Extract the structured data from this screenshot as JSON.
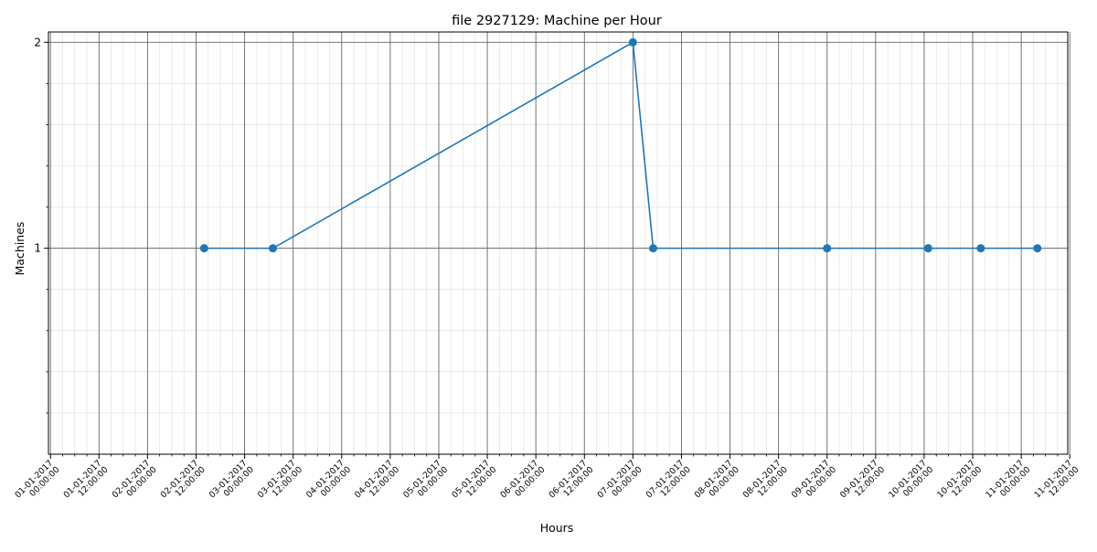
{
  "chart_data": {
    "type": "line",
    "title": "file 2927129: Machine per Hour",
    "xlabel": "Hours",
    "ylabel": "Machines",
    "x_range_hours": [
      -0.5,
      251.5
    ],
    "ylim": [
      0,
      2.05
    ],
    "y_ticks": [
      1,
      2
    ],
    "x_tick_labels": [
      "01-01-2017 00:00:00",
      "01-01-2017 12:00:00",
      "02-01-2017 00:00:00",
      "02-01-2017 12:00:00",
      "03-01-2017 00:00:00",
      "03-01-2017 12:00:00",
      "04-01-2017 00:00:00",
      "04-01-2017 12:00:00",
      "05-01-2017 00:00:00",
      "05-01-2017 12:00:00",
      "06-01-2017 00:00:00",
      "06-01-2017 12:00:00",
      "07-01-2017 00:00:00",
      "07-01-2017 12:00:00",
      "08-01-2017 00:00:00",
      "08-01-2017 12:00:00",
      "09-01-2017 00:00:00",
      "09-01-2017 12:00:00",
      "10-01-2017 00:00:00",
      "10-01-2017 12:00:00",
      "11-01-2017 00:00:00",
      "11-01-2017 12:00:00"
    ],
    "grid": true,
    "series": [
      {
        "color": "#1f77b4",
        "x": [
          38,
          55,
          144,
          149,
          192,
          217,
          230,
          244
        ],
        "y": [
          1,
          1,
          2,
          1,
          1,
          1,
          1,
          1
        ]
      }
    ]
  }
}
